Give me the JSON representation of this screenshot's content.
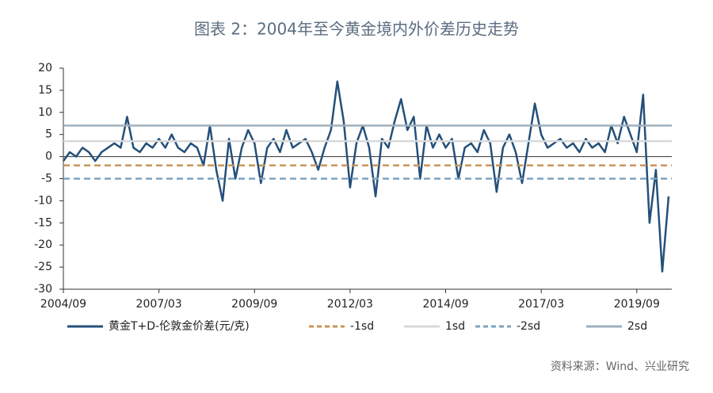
{
  "chart_data": {
    "type": "line",
    "title": "图表 2：2004年至今黄金境内外价差历史走势",
    "source": "资料来源：Wind、兴业研究",
    "x": [
      "2004/09",
      "2004/11",
      "2005/01",
      "2005/03",
      "2005/05",
      "2005/07",
      "2005/09",
      "2005/11",
      "2006/01",
      "2006/03",
      "2006/05",
      "2006/07",
      "2006/09",
      "2006/11",
      "2007/01",
      "2007/03",
      "2007/05",
      "2007/07",
      "2007/09",
      "2007/11",
      "2008/01",
      "2008/03",
      "2008/05",
      "2008/07",
      "2008/09",
      "2008/11",
      "2009/01",
      "2009/03",
      "2009/05",
      "2009/07",
      "2009/09",
      "2009/11",
      "2010/01",
      "2010/03",
      "2010/05",
      "2010/07",
      "2010/09",
      "2010/11",
      "2011/01",
      "2011/03",
      "2011/05",
      "2011/07",
      "2011/09",
      "2011/11",
      "2012/01",
      "2012/03",
      "2012/05",
      "2012/07",
      "2012/09",
      "2012/11",
      "2013/01",
      "2013/03",
      "2013/05",
      "2013/07",
      "2013/09",
      "2013/11",
      "2014/01",
      "2014/03",
      "2014/05",
      "2014/07",
      "2014/09",
      "2014/11",
      "2015/01",
      "2015/03",
      "2015/05",
      "2015/07",
      "2015/09",
      "2015/11",
      "2016/01",
      "2016/03",
      "2016/05",
      "2016/07",
      "2016/09",
      "2016/11",
      "2017/01",
      "2017/03",
      "2017/05",
      "2017/07",
      "2017/09",
      "2017/11",
      "2018/01",
      "2018/03",
      "2018/05",
      "2018/07",
      "2018/09",
      "2018/11",
      "2019/01",
      "2019/03",
      "2019/05",
      "2019/07",
      "2019/09",
      "2019/11",
      "2020/01",
      "2020/03",
      "2020/05",
      "2020/07"
    ],
    "series": [
      {
        "name": "黄金T+D-伦敦金价差(元/克)",
        "color": "#24507a",
        "values": [
          -1,
          1,
          0,
          2,
          1,
          -1,
          1,
          2,
          3,
          2,
          9,
          2,
          1,
          3,
          2,
          4,
          2,
          5,
          2,
          1,
          3,
          2,
          -2,
          7,
          -3,
          -10,
          4,
          -5,
          2,
          6,
          3,
          -6,
          2,
          4,
          1,
          6,
          2,
          3,
          4,
          1,
          -3,
          2,
          6,
          17,
          8,
          -7,
          3,
          7,
          2,
          -9,
          4,
          2,
          8,
          13,
          6,
          9,
          -5,
          7,
          2,
          5,
          2,
          4,
          -5,
          2,
          3,
          1,
          6,
          3,
          -8,
          2,
          5,
          1,
          -6,
          3,
          12,
          5,
          2,
          3,
          4,
          2,
          3,
          1,
          4,
          2,
          3,
          1,
          7,
          3,
          9,
          5,
          1,
          14,
          -15,
          -3,
          -26,
          -9
        ]
      }
    ],
    "reference_lines": [
      {
        "name": "-1sd",
        "value": -2,
        "color": "#c9955a",
        "dash": true
      },
      {
        "name": "1sd",
        "value": 3.5,
        "color": "#d9d9d9",
        "dash": false
      },
      {
        "name": "-2sd",
        "value": -5,
        "color": "#7ea3c0",
        "dash": true
      },
      {
        "name": "2sd",
        "value": 7,
        "color": "#9fb0bd",
        "dash": false
      }
    ],
    "ylim": [
      -30,
      20
    ],
    "yticks": [
      20,
      15,
      10,
      5,
      0,
      -5,
      -10,
      -15,
      -20,
      -25,
      -30
    ],
    "xticks": [
      "2004/09",
      "2007/03",
      "2009/09",
      "2012/03",
      "2014/09",
      "2017/03",
      "2019/09"
    ]
  }
}
